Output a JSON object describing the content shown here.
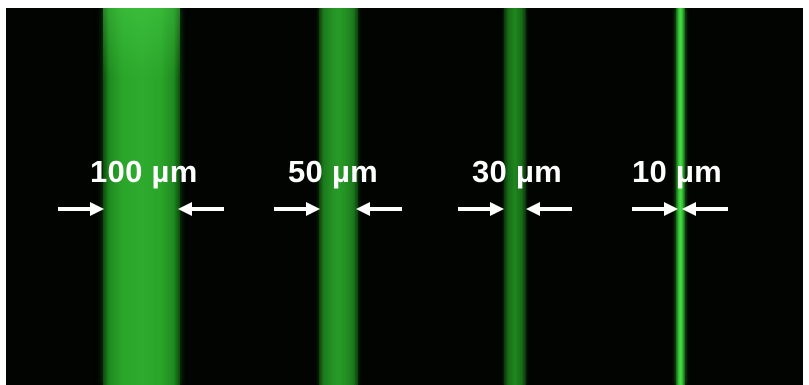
{
  "figure": {
    "background_color": "#020402",
    "channel_color": "#2eab2e",
    "label_color": "#ffffff",
    "arrow_color": "#ffffff",
    "channels": [
      {
        "width_label": "100 µm"
      },
      {
        "width_label": "50 µm"
      },
      {
        "width_label": "30 µm"
      },
      {
        "width_label": "10 µm"
      }
    ],
    "arrow_icon": "arrow-right-icon / arrow-left-icon"
  }
}
